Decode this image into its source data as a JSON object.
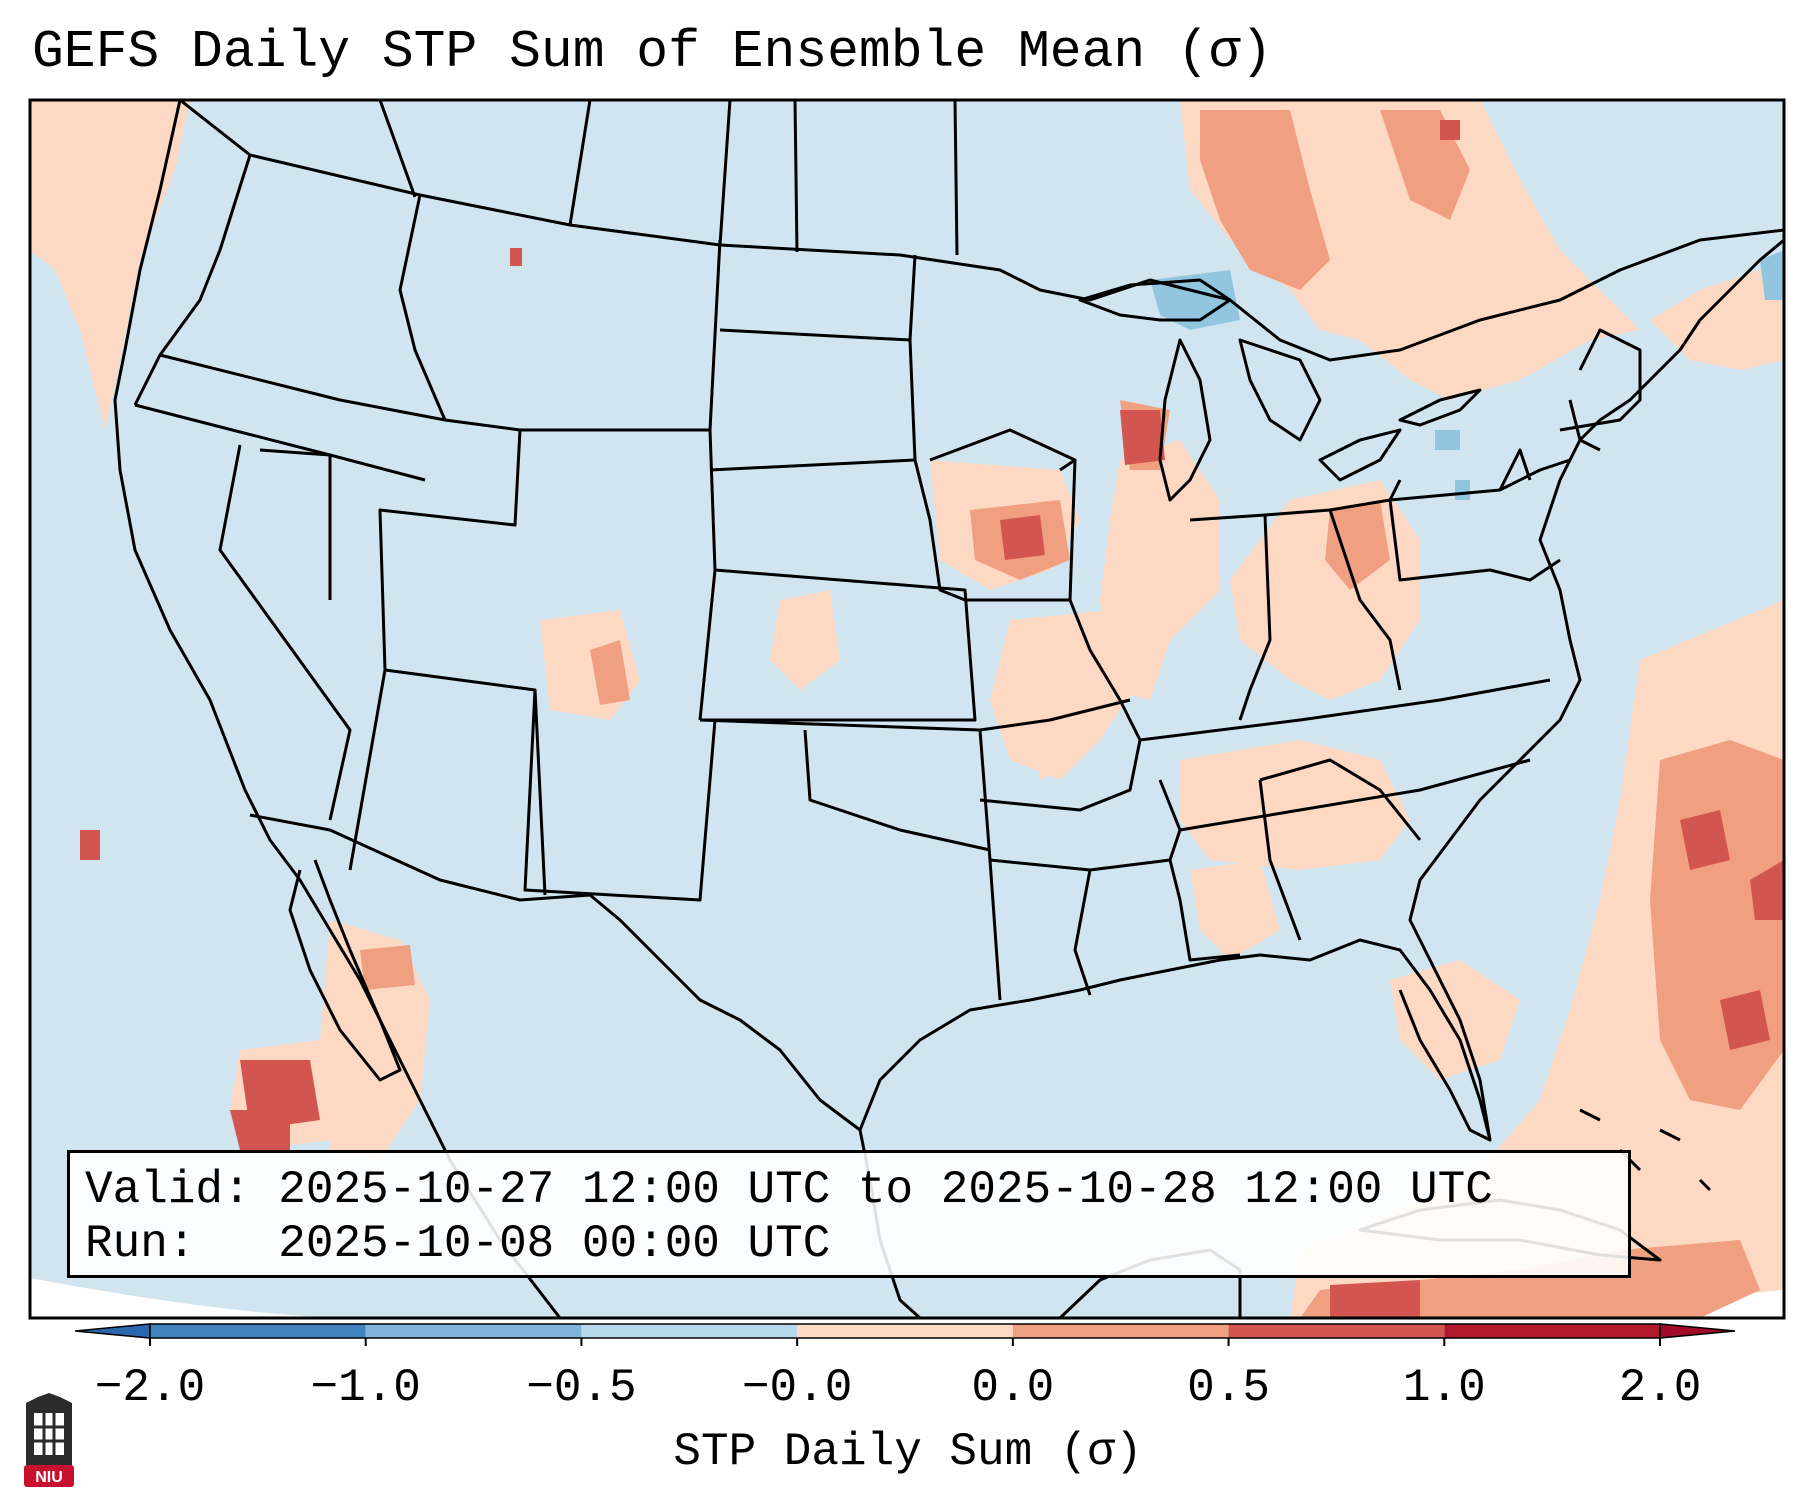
{
  "title": "GEFS Daily STP Sum of Ensemble Mean (σ)",
  "info": {
    "valid_line": "Valid: 2025-10-27 12:00 UTC to 2025-10-28 12:00 UTC",
    "run_line": "Run:   2025-10-08 00:00 UTC"
  },
  "colorbar": {
    "label": "STP Daily Sum (σ)",
    "ticks": [
      "−2.0",
      "−1.0",
      "−0.5",
      "−0.0",
      "0.0",
      "0.5",
      "1.0",
      "2.0"
    ],
    "colors": [
      "#3f82bd",
      "#7fb4d8",
      "#b7d7ea",
      "#eef4f8",
      "#fdd9c4",
      "#f0a080",
      "#d25550",
      "#b2182b"
    ],
    "extend_low": "#2a67ad",
    "extend_high": "#a10a28"
  },
  "map": {
    "background_color": "#d1e5f0",
    "outside_color": "#ffffff",
    "border_color": "#000000",
    "field_levels": {
      "light_red": "#fdd9c4",
      "medium_red": "#f0a080",
      "dark_red": "#d25550",
      "deep_red": "#b2182b",
      "light_blue": "#92c5de",
      "white": "#f7f7f7"
    }
  },
  "logo": {
    "text": "NIU",
    "color": "#c8102e"
  }
}
